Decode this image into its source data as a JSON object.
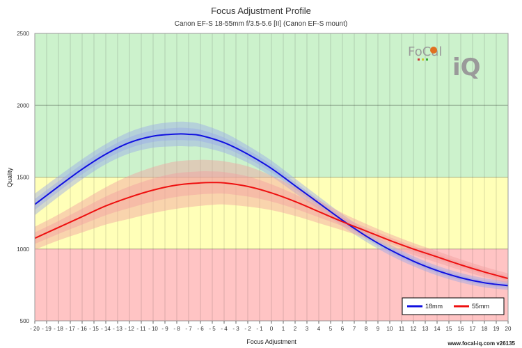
{
  "chart_data": {
    "type": "line",
    "title": "Focus Adjustment Profile",
    "subtitle": "Canon EF-S 18-55mm f/3.5-5.6 [II] (Canon EF-S mount)",
    "xlabel": "Focus Adjustment",
    "ylabel": "Quality",
    "xlim": [
      -20,
      20
    ],
    "ylim": [
      500,
      2500
    ],
    "xticks": [
      -20,
      -19,
      -18,
      -17,
      -16,
      -15,
      -14,
      -13,
      -12,
      -11,
      -10,
      -9,
      -8,
      -7,
      -6,
      -5,
      -4,
      -3,
      -2,
      -1,
      0,
      1,
      2,
      3,
      4,
      5,
      6,
      7,
      8,
      9,
      10,
      11,
      12,
      13,
      14,
      15,
      16,
      17,
      18,
      19,
      20
    ],
    "yticks": [
      500,
      1000,
      1500,
      2000,
      2500
    ],
    "grid": true,
    "legend_position": "bottom-right",
    "bands": [
      {
        "from": 500,
        "to": 1000,
        "color": "#ffc4c4"
      },
      {
        "from": 1000,
        "to": 1500,
        "color": "#ffffb8"
      },
      {
        "from": 1500,
        "to": 2500,
        "color": "#ccf2cc"
      }
    ],
    "series": [
      {
        "name": "18mm",
        "color": "#1010e0",
        "band_color": "#9aa8e8",
        "x": [
          -20,
          -18,
          -16,
          -14,
          -12,
          -10,
          -8,
          -7,
          -6,
          -4,
          -2,
          0,
          2,
          4,
          6,
          8,
          10,
          12,
          14,
          16,
          18,
          20
        ],
        "y": [
          1310,
          1435,
          1555,
          1660,
          1740,
          1785,
          1800,
          1798,
          1790,
          1740,
          1660,
          1560,
          1440,
          1320,
          1200,
          1090,
          995,
          915,
          850,
          800,
          765,
          745
        ],
        "band": [
          75,
          72,
          70,
          70,
          75,
          80,
          85,
          85,
          80,
          70,
          60,
          55,
          50,
          45,
          42,
          40,
          38,
          35,
          34,
          33,
          32,
          30
        ]
      },
      {
        "name": "55mm",
        "color": "#ee1010",
        "band_color": "#f2a0a0",
        "x": [
          -20,
          -18,
          -16,
          -14,
          -12,
          -10,
          -8,
          -6,
          -5,
          -4,
          -2,
          0,
          2,
          4,
          6,
          8,
          10,
          12,
          14,
          16,
          18,
          20
        ],
        "y": [
          1075,
          1150,
          1225,
          1300,
          1360,
          1410,
          1445,
          1460,
          1462,
          1460,
          1435,
          1390,
          1330,
          1260,
          1190,
          1125,
          1060,
          1000,
          945,
          890,
          840,
          795
        ],
        "band": [
          80,
          90,
          110,
          130,
          150,
          160,
          165,
          160,
          155,
          150,
          140,
          120,
          100,
          80,
          60,
          50,
          45,
          42,
          40,
          38,
          36,
          35
        ]
      }
    ]
  },
  "logo": {
    "part1": "Fo",
    "part2": "C",
    "part3": "al",
    "part4": "iQ"
  },
  "footer": {
    "text": "www.focal-iq.com  v26135"
  }
}
